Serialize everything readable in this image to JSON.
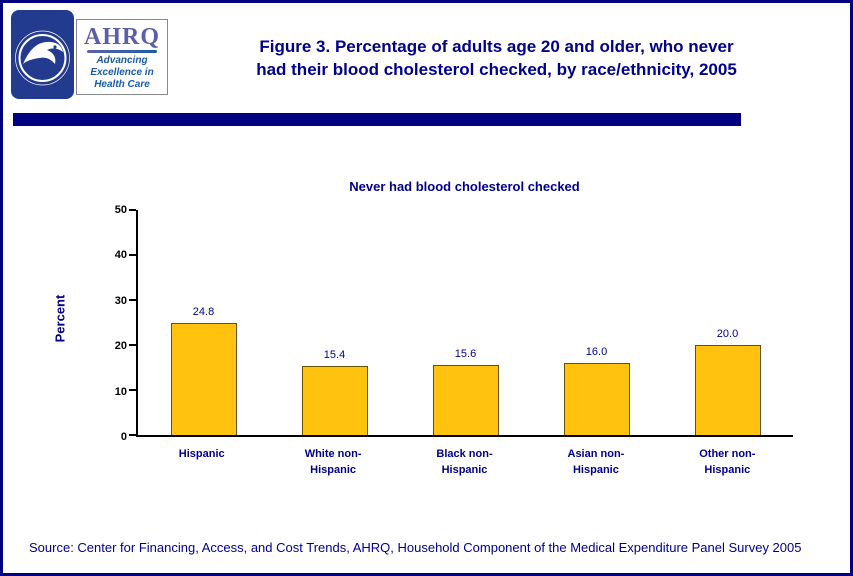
{
  "page": {
    "border_color": "#000080",
    "background": "#FFFFFF"
  },
  "header": {
    "hhs_logo_alt": "HHS eagle logo",
    "ahrq": {
      "acronym": "AHRQ",
      "tagline_line1": "Advancing",
      "tagline_line2": "Excellence in",
      "tagline_line3": "Health Care"
    },
    "title_line1": "Figure 3. Percentage of adults age 20 and older, who never",
    "title_line2": "had their blood cholesterol checked, by race/ethnicity, 2005"
  },
  "chart_data": {
    "type": "bar",
    "title": "Never had blood cholesterol checked",
    "ylabel": "Percent",
    "xlabel": "",
    "ylim": [
      0,
      50
    ],
    "yticks": [
      0,
      10,
      20,
      30,
      40,
      50
    ],
    "categories": [
      "Hispanic",
      "White non-Hispanic",
      "Black non-Hispanic",
      "Asian non-Hispanic",
      "Other non-Hispanic"
    ],
    "values": [
      24.8,
      15.4,
      15.6,
      16.0,
      20.0
    ],
    "value_labels": [
      "24.8",
      "15.4",
      "15.6",
      "16.0",
      "20.0"
    ],
    "bar_color": "#FFC20E",
    "bar_border_color": "#6B5200",
    "grid": false,
    "legend": false
  },
  "footer": {
    "source": "Source: Center for Financing, Access, and Cost Trends, AHRQ, Household Component of the Medical Expenditure Panel Survey 2005"
  }
}
